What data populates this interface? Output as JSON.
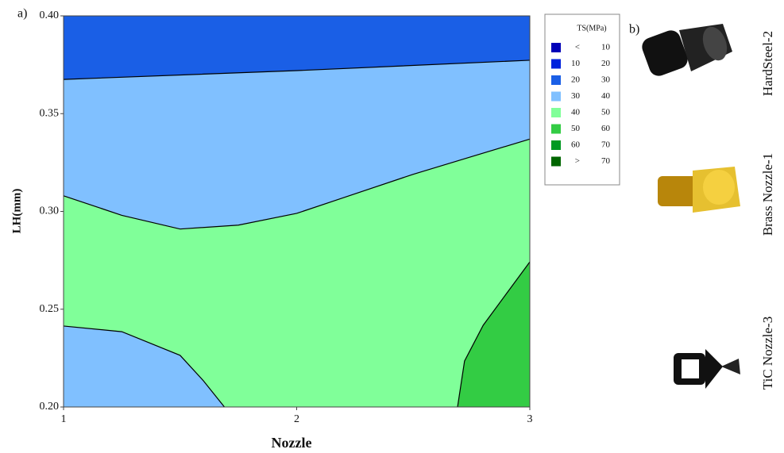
{
  "chart_data": {
    "type": "contour",
    "panel_label": "a)",
    "x_label": "Nozzle",
    "y_label": "LH(mm)",
    "xlim": [
      1,
      3
    ],
    "ylim": [
      0.2,
      0.4
    ],
    "xticks": [
      1,
      2,
      3
    ],
    "yticks": [
      {
        "value": 0.2,
        "label": "0.20"
      },
      {
        "value": 0.25,
        "label": "0.25"
      },
      {
        "value": 0.3,
        "label": "0.30"
      },
      {
        "value": 0.35,
        "label": "0.35"
      },
      {
        "value": 0.4,
        "label": "0.40"
      }
    ],
    "contours": [
      {
        "x": [
          1,
          2,
          3
        ],
        "y": [
          0.3675,
          0.372,
          0.3773
        ]
      },
      {
        "x": [
          1,
          1.25,
          1.5,
          1.75,
          2,
          2.25,
          2.5,
          2.75,
          3
        ],
        "y": [
          0.308,
          0.298,
          0.291,
          0.293,
          0.299,
          0.309,
          0.319,
          0.328,
          0.337
        ]
      },
      {
        "x": [
          1,
          1.25,
          1.5,
          1.6,
          1.69
        ],
        "y": [
          0.2414,
          0.2385,
          0.2264,
          0.2134,
          0.2
        ]
      },
      {
        "x": [
          2.69,
          2.72,
          2.8,
          2.9,
          3
        ],
        "y": [
          0.2,
          0.2235,
          0.2418,
          0.258,
          0.2742
        ]
      }
    ],
    "legend": {
      "title": "TS(MPa)",
      "items": [
        {
          "from": "<",
          "to": "10",
          "color": "#0000b8"
        },
        {
          "from": "10",
          "to": "20",
          "color": "#0022dd"
        },
        {
          "from": "20",
          "to": "30",
          "color": "#1a5fe6"
        },
        {
          "from": "30",
          "to": "40",
          "color": "#80c0ff"
        },
        {
          "from": "40",
          "to": "50",
          "color": "#80ff99"
        },
        {
          "from": "50",
          "to": "60",
          "color": "#33cc44"
        },
        {
          "from": "60",
          "to": "70",
          "color": "#009922"
        },
        {
          "from": ">",
          "to": "70",
          "color": "#006600"
        }
      ]
    }
  },
  "panel_b": {
    "label": "b)",
    "nozzles": [
      "HardSteel-2",
      "Brass Nozzle-1",
      "TiC Nozzle-3"
    ]
  }
}
